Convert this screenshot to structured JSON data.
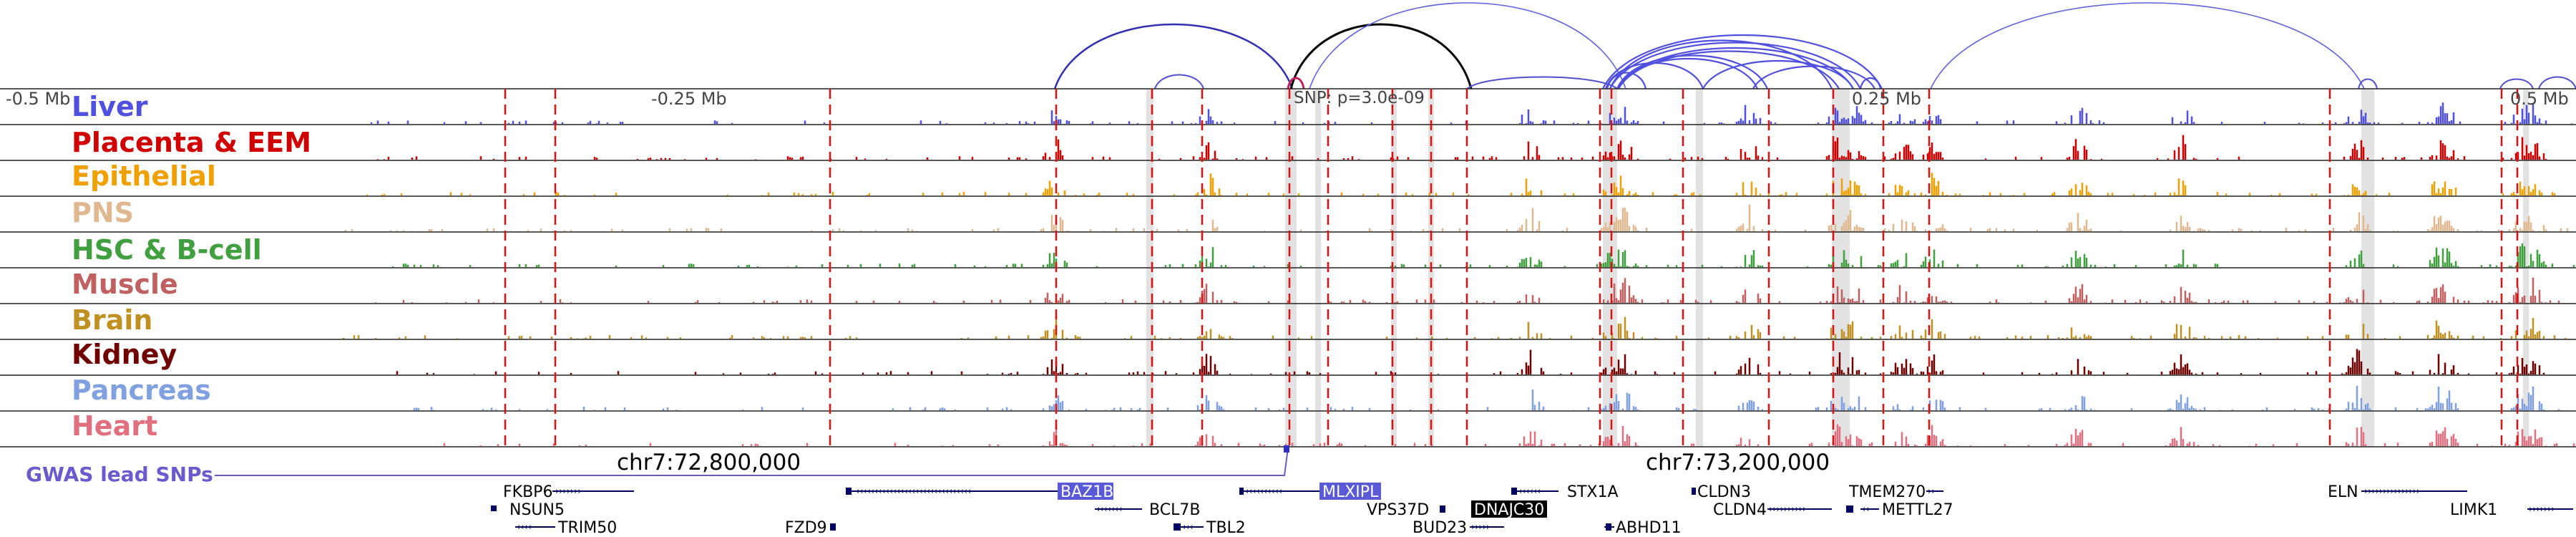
{
  "axis": {
    "top_ticks": [
      "-0.5 Mb",
      "-0.25 Mb",
      "0.25 Mb",
      "0.5 Mb"
    ],
    "bottom_ticks": [
      "chr7:72,800,000",
      "chr7:73,200,000"
    ],
    "snp_label": "SNP: p=3.0e-09"
  },
  "tracks": [
    {
      "name": "Liver",
      "color": "#5050e0"
    },
    {
      "name": "Placenta & EEM",
      "color": "#d00000"
    },
    {
      "name": "Epithelial",
      "color": "#f0a000"
    },
    {
      "name": "PNS",
      "color": "#e0b890"
    },
    {
      "name": "HSC & B-cell",
      "color": "#40a040"
    },
    {
      "name": "Muscle",
      "color": "#c06060"
    },
    {
      "name": "Brain",
      "color": "#c09020"
    },
    {
      "name": "Kidney",
      "color": "#700000"
    },
    {
      "name": "Pancreas",
      "color": "#80a0e0"
    },
    {
      "name": "Heart",
      "color": "#e07080"
    }
  ],
  "gwas_label": "GWAS lead SNPs",
  "genes": [
    {
      "name": "FKBP6",
      "highlight": false
    },
    {
      "name": "NSUN5",
      "highlight": false
    },
    {
      "name": "TRIM50",
      "highlight": false
    },
    {
      "name": "FZD9",
      "highlight": false
    },
    {
      "name": "BAZ1B",
      "highlight": "blue"
    },
    {
      "name": "BCL7B",
      "highlight": false
    },
    {
      "name": "TBL2",
      "highlight": false
    },
    {
      "name": "MLXIPL",
      "highlight": "blue"
    },
    {
      "name": "VPS37D",
      "highlight": false
    },
    {
      "name": "DNAJC30",
      "highlight": "black"
    },
    {
      "name": "BUD23",
      "highlight": false
    },
    {
      "name": "STX1A",
      "highlight": false
    },
    {
      "name": "ABHD11",
      "highlight": false
    },
    {
      "name": "CLDN3",
      "highlight": false
    },
    {
      "name": "CLDN4",
      "highlight": false
    },
    {
      "name": "TMEM270",
      "highlight": false
    },
    {
      "name": "METTL27",
      "highlight": false
    },
    {
      "name": "ELN",
      "highlight": false
    },
    {
      "name": "LIMK1",
      "highlight": false
    }
  ]
}
